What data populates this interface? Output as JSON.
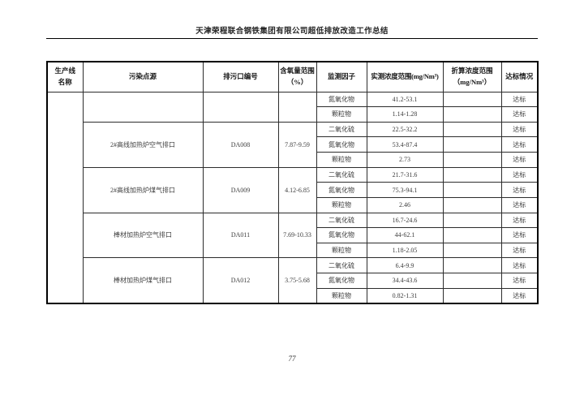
{
  "doc": {
    "header_title": "天津荣程联合钢铁集团有限公司超低排放改造工作总结",
    "page_number": "77"
  },
  "table": {
    "headers": {
      "production_line": "生产线\n名称",
      "pollution_source": "污染点源",
      "outlet_code": "排污口编号",
      "oxygen_range": "含氧量范围\n（%）",
      "monitor_factor": "监测因子",
      "measured_range": "实测浓度范围(mg/Nm³)",
      "converted_range": "折算浓度范围\n（mg/Nm³）",
      "status": "达标情况"
    },
    "production_line_value": "",
    "groups": [
      {
        "source": "",
        "outlet": "",
        "oxygen": "",
        "rows": [
          {
            "factor": "氮氧化物",
            "measured": "41.2-53.1",
            "converted": "",
            "status": "达标"
          },
          {
            "factor": "颗粒物",
            "measured": "1.14-1.28",
            "converted": "",
            "status": "达标"
          }
        ]
      },
      {
        "source": "2#高线加热炉空气排口",
        "outlet": "DA008",
        "oxygen": "7.87-9.59",
        "rows": [
          {
            "factor": "二氧化硫",
            "measured": "22.5-32.2",
            "converted": "",
            "status": "达标"
          },
          {
            "factor": "氮氧化物",
            "measured": "53.4-87.4",
            "converted": "",
            "status": "达标"
          },
          {
            "factor": "颗粒物",
            "measured": "2.73",
            "converted": "",
            "status": "达标"
          }
        ]
      },
      {
        "source": "2#高线加热炉煤气排口",
        "outlet": "DA009",
        "oxygen": "4.12-6.85",
        "rows": [
          {
            "factor": "二氧化硫",
            "measured": "21.7-31.6",
            "converted": "",
            "status": "达标"
          },
          {
            "factor": "氮氧化物",
            "measured": "75.3-94.1",
            "converted": "",
            "status": "达标"
          },
          {
            "factor": "颗粒物",
            "measured": "2.46",
            "converted": "",
            "status": "达标"
          }
        ]
      },
      {
        "source": "棒材加热炉空气排口",
        "outlet": "DA011",
        "oxygen": "7.69-10.33",
        "rows": [
          {
            "factor": "二氧化硫",
            "measured": "16.7-24.6",
            "converted": "",
            "status": "达标"
          },
          {
            "factor": "氮氧化物",
            "measured": "44-62.1",
            "converted": "",
            "status": "达标"
          },
          {
            "factor": "颗粒物",
            "measured": "1.18-2.05",
            "converted": "",
            "status": "达标"
          }
        ]
      },
      {
        "source": "棒材加热炉煤气排口",
        "outlet": "DA012",
        "oxygen": "3.75-5.68",
        "rows": [
          {
            "factor": "二氧化硫",
            "measured": "6.4-9.9",
            "converted": "",
            "status": "达标"
          },
          {
            "factor": "氮氧化物",
            "measured": "34.4-43.6",
            "converted": "",
            "status": "达标"
          },
          {
            "factor": "颗粒物",
            "measured": "0.82-1.31",
            "converted": "",
            "status": "达标"
          }
        ]
      }
    ]
  }
}
